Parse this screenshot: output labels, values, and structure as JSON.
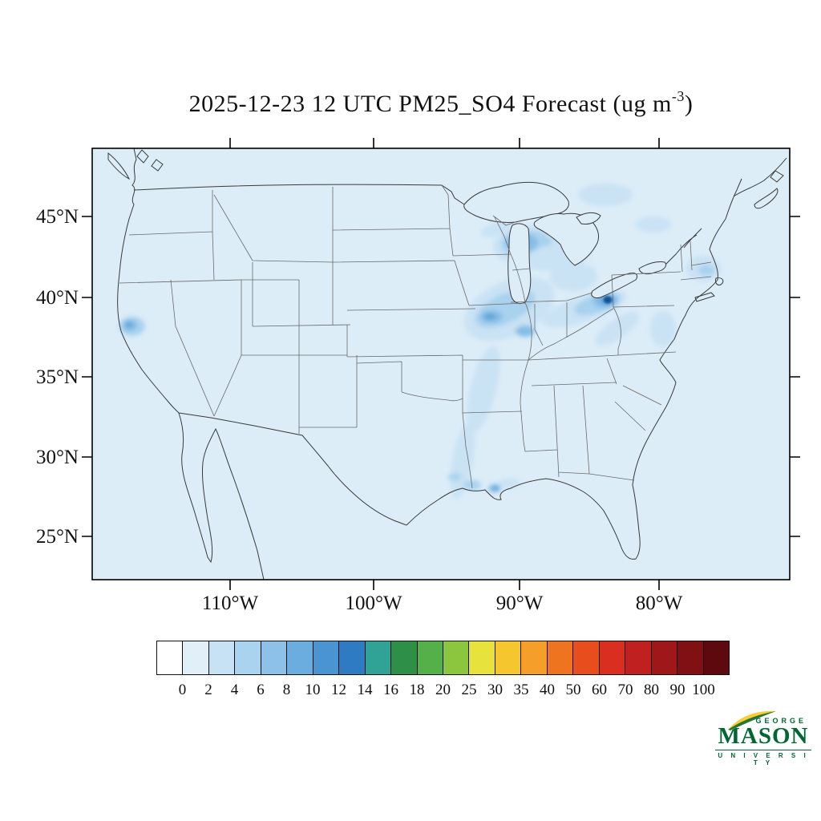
{
  "title": {
    "prefix": "2025-12-23 12 UTC PM25_SO4 Forecast (ug m",
    "superscript": "-3",
    "suffix": ")"
  },
  "map": {
    "background_color": "#DCEDF8",
    "lat_labels": [
      "45°N",
      "40°N",
      "35°N",
      "30°N",
      "25°N"
    ],
    "lon_labels": [
      "110°W",
      "100°W",
      "90°W",
      "80°W"
    ]
  },
  "colorbar": {
    "labels": [
      "0",
      "2",
      "4",
      "6",
      "8",
      "10",
      "12",
      "14",
      "16",
      "18",
      "20",
      "25",
      "30",
      "35",
      "40",
      "50",
      "60",
      "70",
      "80",
      "90",
      "100"
    ],
    "colors": [
      "#FFFFFF",
      "#E1EFF9",
      "#C7E1F5",
      "#AAD3EF",
      "#8DC1E8",
      "#6CADDF",
      "#4B94D2",
      "#2E7BC3",
      "#31A296",
      "#2E8F49",
      "#56B04A",
      "#8CC63F",
      "#E8E33C",
      "#F6C62F",
      "#F59E28",
      "#EF7420",
      "#E84E1D",
      "#DA2F20",
      "#C0201F",
      "#A0171A",
      "#801013",
      "#5D090E"
    ]
  },
  "chart_data": {
    "type": "heatmap",
    "title": "2025-12-23 12 UTC PM25_SO4 Forecast (ug m-3)",
    "variable": "PM25_SO4",
    "units": "ug m-3",
    "valid_time": "2025-12-23 12 UTC",
    "region": "Continental United States",
    "lat_ticks_deg_n": [
      45,
      40,
      35,
      30,
      25
    ],
    "lon_ticks_deg_w": [
      110,
      100,
      90,
      80
    ],
    "colorbar_levels": [
      0,
      2,
      4,
      6,
      8,
      10,
      12,
      14,
      16,
      18,
      20,
      25,
      30,
      35,
      40,
      50,
      60,
      70,
      80,
      90,
      100
    ],
    "background_value_bin": "0-2",
    "hotspots": [
      {
        "region": "southern Minnesota",
        "approx_max_ug_m3": 10
      },
      {
        "region": "western Lake Erie / Detroit-Toledo area",
        "approx_max_ug_m3": 14
      },
      {
        "region": "Iowa - Illinois - Missouri corridor",
        "approx_max_ug_m3": 8
      },
      {
        "region": "Wisconsin / Lake Michigan band",
        "approx_max_ug_m3": 4
      },
      {
        "region": "northern California valley",
        "approx_max_ug_m3": 8
      },
      {
        "region": "Louisiana Gulf coast points",
        "approx_max_ug_m3": 8
      },
      {
        "region": "plume through Oklahoma / east Texas to Gulf",
        "approx_max_ug_m3": 2
      },
      {
        "region": "Ohio valley / Appalachian streaks",
        "approx_max_ug_m3": 4
      },
      {
        "region": "upstate New York / New England patch",
        "approx_max_ug_m3": 4
      }
    ],
    "legend_position": "bottom",
    "grid": false
  },
  "logo": {
    "george": "GEORGE",
    "mason": "MASON",
    "university": "U N I V E R S I T Y"
  }
}
